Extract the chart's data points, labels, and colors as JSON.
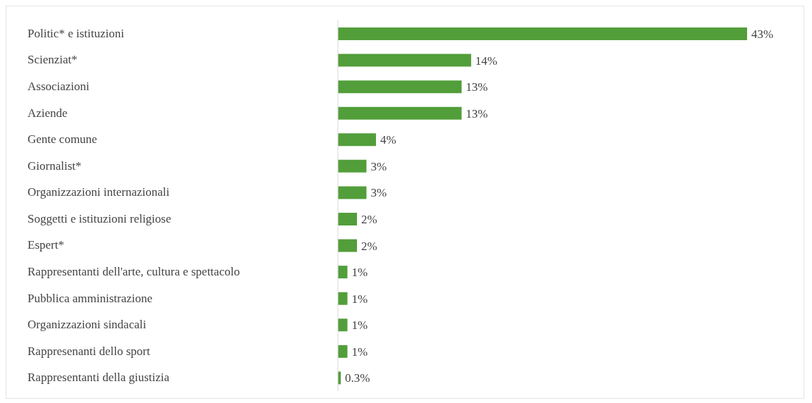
{
  "chart_data": {
    "type": "bar",
    "orientation": "horizontal",
    "categories": [
      "Politic* e istituzioni",
      "Scienziat*",
      "Associazioni",
      "Aziende",
      "Gente comune",
      "Giornalist*",
      "Organizzazioni internazionali",
      "Soggetti e istituzioni religiose",
      "Espert*",
      "Rappresentanti dell'arte, cultura e spettacolo",
      "Pubblica amministrazione",
      "Organizzazioni sindacali",
      "Rappresenanti dello sport",
      "Rappresentanti della giustizia"
    ],
    "values": [
      43,
      14,
      13,
      13,
      4,
      3,
      3,
      2,
      2,
      1,
      1,
      1,
      1,
      0.3
    ],
    "value_labels": [
      "43%",
      "14%",
      "13%",
      "13%",
      "4%",
      "3%",
      "3%",
      "2%",
      "2%",
      "1%",
      "1%",
      "1%",
      "1%",
      "0.3%"
    ],
    "color": "#529e3a",
    "grid": false,
    "legend": false
  }
}
